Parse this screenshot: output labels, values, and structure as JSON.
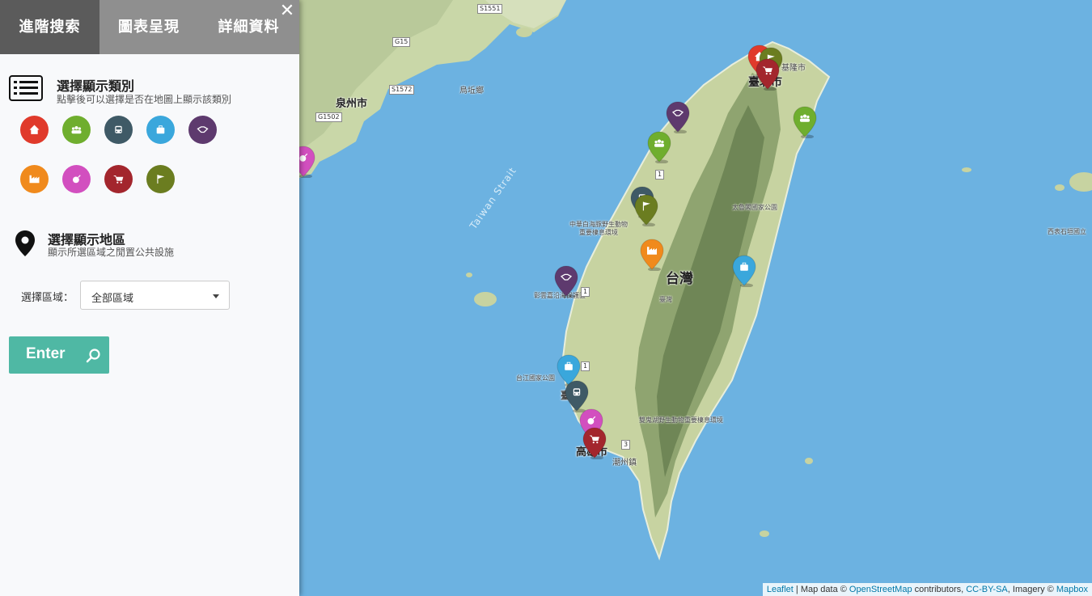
{
  "tabs": [
    {
      "label": "進階搜索",
      "active": true
    },
    {
      "label": "圖表呈現",
      "active": false
    },
    {
      "label": "詳細資料",
      "active": false
    }
  ],
  "close_icon": "close-icon",
  "category_section": {
    "title": "選擇顯示類別",
    "subtitle": "點擊後可以選擇是否在地圖上顯示該類別",
    "icon": "list-icon",
    "categories": [
      {
        "icon": "home-icon",
        "color": "#e03a2b"
      },
      {
        "icon": "group-icon",
        "color": "#6fae2e"
      },
      {
        "icon": "bus-icon",
        "color": "#3f5a66"
      },
      {
        "icon": "briefcase-icon",
        "color": "#3aa7dc"
      },
      {
        "icon": "handshake-icon",
        "color": "#5e3a6e"
      },
      {
        "icon": "factory-icon",
        "color": "#f08a1c"
      },
      {
        "icon": "bomb-icon",
        "color": "#d24fbf"
      },
      {
        "icon": "cart-icon",
        "color": "#a3262d"
      },
      {
        "icon": "flag-icon",
        "color": "#6b7d20"
      }
    ]
  },
  "region_section": {
    "title": "選擇顯示地區",
    "subtitle": "顯示所選區域之閒置公共設施",
    "icon": "map-marker-icon",
    "select_label": "選擇區域：",
    "selected": "全部區域"
  },
  "enter_button": {
    "label": "Enter",
    "icon": "search-icon"
  },
  "map": {
    "labels": {
      "quanzhou": "泉州市",
      "wuqiuxiang": "烏坵鄉",
      "taipei": "臺北市",
      "keelung": "基隆市",
      "taiwan": "台灣",
      "taiwan_small": "臺灣",
      "kaohsiung": "高雄市",
      "chaozhou": "潮州鎮",
      "strait": "Taiwan Strait",
      "dolphin": "中華白海豚野生動物重要棲息環境",
      "taroko": "太魯閣國家公園",
      "changyun": "彰雲嘉沿海保護區",
      "taijiang": "台江國家公園",
      "shuanggui": "雙鬼湖野生動物重要棲息環境",
      "xibiao": "西表石垣國立",
      "tainan": "臺南"
    },
    "roads": {
      "s1551": "S1551",
      "g15": "G15",
      "s1572": "S1572",
      "g1502": "G1502",
      "r1a": "1",
      "r1b": "1",
      "r1c": "1",
      "r3": "3"
    },
    "markers": [
      {
        "icon": "home-icon",
        "color": "#e03a2b"
      },
      {
        "icon": "flag-icon",
        "color": "#6b7d20"
      },
      {
        "icon": "cart-icon",
        "color": "#a3262d"
      },
      {
        "icon": "group-icon",
        "color": "#6fae2e"
      },
      {
        "icon": "handshake-icon",
        "color": "#5e3a6e"
      },
      {
        "icon": "group-icon",
        "color": "#6fae2e"
      },
      {
        "icon": "bus-icon",
        "color": "#3f5a66"
      },
      {
        "icon": "flag-icon",
        "color": "#6b7d20"
      },
      {
        "icon": "factory-icon",
        "color": "#f08a1c"
      },
      {
        "icon": "briefcase-icon",
        "color": "#3aa7dc"
      },
      {
        "icon": "handshake-icon",
        "color": "#5e3a6e"
      },
      {
        "icon": "briefcase-icon",
        "color": "#3aa7dc"
      },
      {
        "icon": "bus-icon",
        "color": "#3f5a66"
      },
      {
        "icon": "bomb-icon",
        "color": "#d24fbf"
      },
      {
        "icon": "cart-icon",
        "color": "#a3262d"
      },
      {
        "icon": "bomb-icon",
        "color": "#d24fbf"
      }
    ]
  },
  "attribution": {
    "leaflet": "Leaflet",
    "sep": " | Map data © ",
    "osm": "OpenStreetMap",
    "mid": " contributors, ",
    "license": "CC-BY-SA",
    "imagery": ", Imagery © ",
    "mapbox": "Mapbox"
  }
}
